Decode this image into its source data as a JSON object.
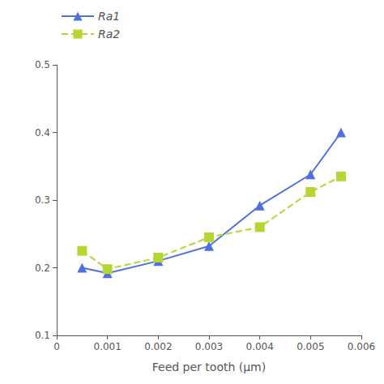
{
  "chart_data": {
    "type": "line",
    "xlabel": "Feed per tooth (μm)",
    "x": [
      0.0005,
      0.001,
      0.002,
      0.003,
      0.004,
      0.005,
      0.0056
    ],
    "series": [
      {
        "name": "Ra1",
        "values": [
          0.2,
          0.192,
          0.21,
          0.232,
          0.292,
          0.338,
          0.4
        ],
        "marker": "triangle",
        "line_style": "solid"
      },
      {
        "name": "Ra2",
        "values": [
          0.225,
          0.198,
          0.215,
          0.245,
          0.26,
          0.312,
          0.335
        ],
        "marker": "square",
        "line_style": "dashed"
      }
    ],
    "xlim": [
      0,
      0.006
    ],
    "xticks": [
      0,
      0.001,
      0.002,
      0.003,
      0.004,
      0.005,
      0.006
    ],
    "ylim": [
      0.1,
      0.5
    ],
    "yticks": [
      0.1,
      0.2,
      0.3,
      0.4,
      0.5
    ],
    "grid": false,
    "legend": "upper left"
  }
}
